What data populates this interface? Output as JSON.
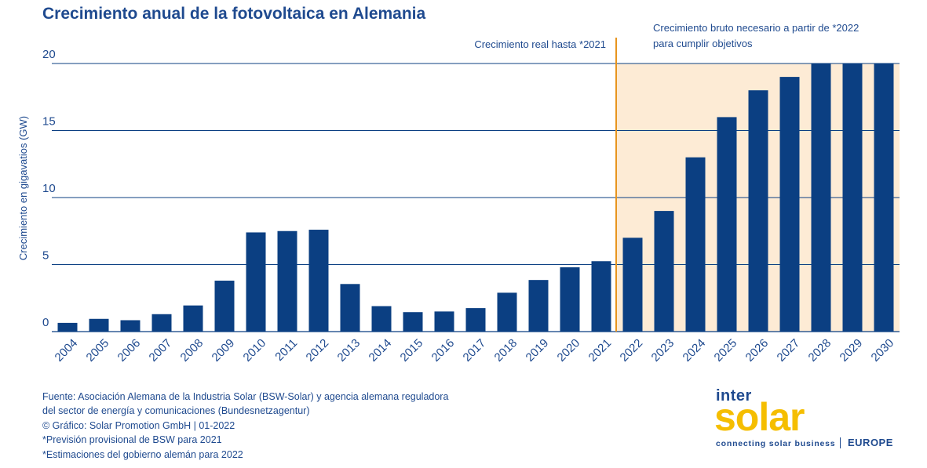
{
  "chart_data": {
    "type": "bar",
    "title": "Crecimiento anual de la fotovoltaica en Alemania",
    "ylabel": "Crecimiento en gigavatios (GW)",
    "xlabel": "",
    "ylim": [
      0,
      20
    ],
    "yticks": [
      "0",
      "5",
      "10",
      "15",
      "20"
    ],
    "grid": true,
    "color": "#0b3f82",
    "highlight_color": "#fdebd5",
    "divider_color": "#e8951e",
    "categories": [
      "2004",
      "2005",
      "2006",
      "2007",
      "2008",
      "2009",
      "2010",
      "2011",
      "2012",
      "2013",
      "2014",
      "2015",
      "2016",
      "2017",
      "2018",
      "2019",
      "2020",
      "2021",
      "2022",
      "2023",
      "2024",
      "2025",
      "2026",
      "2027",
      "2028",
      "2029",
      "2030"
    ],
    "values": [
      0.65,
      0.95,
      0.85,
      1.3,
      1.95,
      3.8,
      7.4,
      7.5,
      7.6,
      3.55,
      1.9,
      1.45,
      1.5,
      1.75,
      2.9,
      3.85,
      4.8,
      5.25,
      7.0,
      9.0,
      13.0,
      16.0,
      18.0,
      19.0,
      20.0,
      20.0,
      20.0
    ],
    "annotations": {
      "actual": "Crecimiento real hasta *2021",
      "needed_line1": "Crecimiento bruto necesario a partir de *2022",
      "needed_line2": "para cumplir objetivos"
    }
  },
  "footer": {
    "lines": [
      "Fuente: Asociación Alemana de la Industria Solar (BSW-Solar) y agencia alemana reguladora",
      "del sector de energía y comunicaciones (Bundesnetzagentur)",
      "© Gráfico: Solar Promotion GmbH | 01-2022",
      "*Previsión provisional de BSW para 2021",
      "*Estimaciones del gobierno alemán para 2022"
    ]
  },
  "logo": {
    "inter": "inter",
    "solar": "solar",
    "tagline": "connecting solar business",
    "region": "EUROPE"
  }
}
